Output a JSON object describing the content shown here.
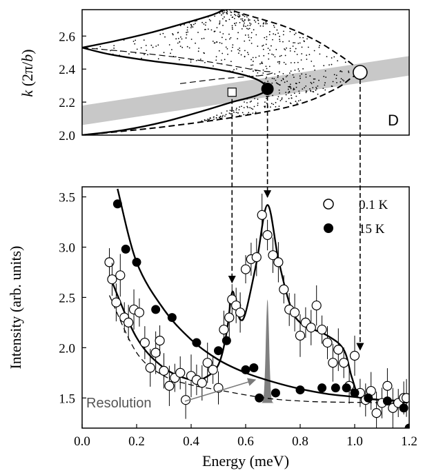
{
  "chart_data": [
    {
      "type": "scatter",
      "panel": "D",
      "ylabel": "k (2π/b)",
      "ylim": [
        2.0,
        2.76
      ],
      "yticks": [
        2.0,
        2.2,
        2.4,
        2.6
      ],
      "xlim": [
        0.0,
        1.2
      ],
      "dispersion_solid_lower": [
        [
          0.0,
          2.0
        ],
        [
          0.15,
          2.03
        ],
        [
          0.3,
          2.08
        ],
        [
          0.45,
          2.15
        ],
        [
          0.55,
          2.2
        ],
        [
          0.64,
          2.24
        ],
        [
          0.68,
          2.28
        ],
        [
          0.65,
          2.33
        ],
        [
          0.58,
          2.37
        ],
        [
          0.45,
          2.41
        ],
        [
          0.25,
          2.45
        ],
        [
          0.1,
          2.49
        ],
        [
          0.0,
          2.53
        ]
      ],
      "dispersion_solid_upper": [
        [
          0.0,
          2.53
        ],
        [
          0.12,
          2.57
        ],
        [
          0.25,
          2.62
        ],
        [
          0.38,
          2.68
        ],
        [
          0.48,
          2.73
        ],
        [
          0.52,
          2.76
        ]
      ],
      "dispersion_dashed_outer": [
        [
          0.0,
          2.0
        ],
        [
          0.3,
          2.05
        ],
        [
          0.6,
          2.12
        ],
        [
          0.8,
          2.19
        ],
        [
          0.93,
          2.28
        ],
        [
          0.99,
          2.35
        ],
        [
          1.02,
          2.38
        ],
        [
          0.99,
          2.43
        ],
        [
          0.93,
          2.5
        ],
        [
          0.85,
          2.58
        ],
        [
          0.74,
          2.66
        ],
        [
          0.6,
          2.73
        ],
        [
          0.54,
          2.76
        ]
      ],
      "dispersion_dashed_inner": [
        [
          0.0,
          2.53
        ],
        [
          0.2,
          2.5
        ],
        [
          0.4,
          2.46
        ],
        [
          0.55,
          2.42
        ],
        [
          0.65,
          2.39
        ],
        [
          0.7,
          2.38
        ],
        [
          0.65,
          2.36
        ],
        [
          0.5,
          2.34
        ],
        [
          0.35,
          2.31
        ]
      ],
      "band_k_range": [
        [
          0.0,
          2.12
        ],
        [
          1.2,
          2.42
        ]
      ],
      "markers": [
        {
          "symbol": "square",
          "energy": 0.55,
          "k": 2.26
        },
        {
          "symbol": "filled-circle",
          "energy": 0.68,
          "k": 2.28
        },
        {
          "symbol": "open-circle",
          "energy": 1.02,
          "k": 2.38
        }
      ],
      "panel_label": "D"
    },
    {
      "type": "scatter",
      "xlabel": "Energy (meV)",
      "ylabel": "Intensity (arb. units)",
      "xlim": [
        0.0,
        1.2
      ],
      "ylim": [
        1.2,
        3.6
      ],
      "xticks": [
        0.0,
        0.2,
        0.4,
        0.6,
        0.8,
        1.0,
        1.2
      ],
      "xtick_labels": [
        "0.0",
        "0.2",
        "0.4",
        "0.6",
        "0.8",
        "1.0",
        "1.2"
      ],
      "yticks": [
        1.5,
        2.0,
        2.5,
        3.0,
        3.5
      ],
      "ytick_labels": [
        "1.5",
        "2.0",
        "2.5",
        "3.0",
        "3.5"
      ],
      "legend": {
        "position": "top-right",
        "entries": [
          "0.1 K",
          "15 K"
        ]
      },
      "series": [
        {
          "name": "0.1 K",
          "marker": "open-circle",
          "points": [
            [
              0.1,
              2.85
            ],
            [
              0.11,
              2.68
            ],
            [
              0.125,
              2.45
            ],
            [
              0.14,
              2.72
            ],
            [
              0.155,
              2.3
            ],
            [
              0.17,
              2.25
            ],
            [
              0.19,
              2.38
            ],
            [
              0.21,
              2.35
            ],
            [
              0.23,
              2.05
            ],
            [
              0.25,
              1.8
            ],
            [
              0.27,
              1.95
            ],
            [
              0.285,
              2.07
            ],
            [
              0.3,
              1.77
            ],
            [
              0.32,
              1.62
            ],
            [
              0.34,
              1.7
            ],
            [
              0.36,
              1.75
            ],
            [
              0.38,
              1.48
            ],
            [
              0.4,
              1.72
            ],
            [
              0.42,
              1.68
            ],
            [
              0.44,
              1.65
            ],
            [
              0.46,
              1.85
            ],
            [
              0.48,
              1.78
            ],
            [
              0.5,
              1.6
            ],
            [
              0.52,
              2.18
            ],
            [
              0.54,
              2.3
            ],
            [
              0.55,
              2.48
            ],
            [
              0.565,
              2.42
            ],
            [
              0.58,
              2.35
            ],
            [
              0.6,
              2.78
            ],
            [
              0.62,
              2.88
            ],
            [
              0.64,
              2.9
            ],
            [
              0.66,
              3.32
            ],
            [
              0.68,
              3.12
            ],
            [
              0.7,
              2.92
            ],
            [
              0.72,
              2.85
            ],
            [
              0.74,
              2.58
            ],
            [
              0.76,
              2.38
            ],
            [
              0.78,
              2.35
            ],
            [
              0.8,
              2.12
            ],
            [
              0.82,
              2.25
            ],
            [
              0.84,
              2.2
            ],
            [
              0.86,
              2.42
            ],
            [
              0.88,
              2.18
            ],
            [
              0.9,
              2.05
            ],
            [
              0.92,
              1.85
            ],
            [
              0.94,
              1.98
            ],
            [
              0.96,
              1.85
            ],
            [
              0.98,
              1.62
            ],
            [
              1.0,
              1.92
            ],
            [
              1.02,
              1.55
            ],
            [
              1.04,
              1.48
            ],
            [
              1.06,
              1.57
            ],
            [
              1.08,
              1.35
            ],
            [
              1.1,
              1.45
            ],
            [
              1.12,
              1.62
            ],
            [
              1.14,
              1.4
            ],
            [
              1.16,
              1.45
            ],
            [
              1.18,
              1.5
            ],
            [
              1.19,
              1.5
            ]
          ],
          "error_bars": true
        },
        {
          "name": "15 K",
          "marker": "filled-circle",
          "points": [
            [
              0.13,
              3.43
            ],
            [
              0.16,
              2.98
            ],
            [
              0.2,
              2.85
            ],
            [
              0.27,
              2.38
            ],
            [
              0.33,
              2.3
            ],
            [
              0.42,
              2.05
            ],
            [
              0.5,
              1.97
            ],
            [
              0.53,
              2.07
            ],
            [
              0.6,
              1.78
            ],
            [
              0.63,
              1.8
            ],
            [
              0.65,
              1.5
            ],
            [
              0.71,
              1.55
            ],
            [
              0.8,
              1.58
            ],
            [
              0.88,
              1.6
            ],
            [
              0.93,
              1.6
            ],
            [
              0.97,
              1.6
            ],
            [
              1.0,
              1.55
            ],
            [
              1.05,
              1.5
            ],
            [
              1.12,
              1.47
            ],
            [
              1.18,
              1.4
            ],
            [
              1.2,
              1.2
            ]
          ]
        }
      ],
      "fit_0p1K": [
        [
          0.1,
          2.72
        ],
        [
          0.2,
          2.1
        ],
        [
          0.3,
          1.8
        ],
        [
          0.4,
          1.68
        ],
        [
          0.45,
          1.7
        ],
        [
          0.5,
          1.83
        ],
        [
          0.53,
          2.15
        ],
        [
          0.55,
          2.55
        ],
        [
          0.565,
          2.42
        ],
        [
          0.58,
          2.28
        ],
        [
          0.6,
          2.35
        ],
        [
          0.64,
          2.85
        ],
        [
          0.68,
          3.42
        ],
        [
          0.72,
          2.88
        ],
        [
          0.76,
          2.45
        ],
        [
          0.8,
          2.25
        ],
        [
          0.9,
          2.12
        ],
        [
          0.96,
          1.98
        ],
        [
          0.99,
          1.7
        ],
        [
          1.02,
          1.52
        ],
        [
          1.1,
          1.48
        ],
        [
          1.2,
          1.47
        ]
      ],
      "fit_15K": [
        [
          0.13,
          3.58
        ],
        [
          0.2,
          2.85
        ],
        [
          0.3,
          2.38
        ],
        [
          0.4,
          2.08
        ],
        [
          0.5,
          1.88
        ],
        [
          0.6,
          1.75
        ],
        [
          0.7,
          1.66
        ],
        [
          0.8,
          1.59
        ],
        [
          0.9,
          1.54
        ],
        [
          1.0,
          1.51
        ],
        [
          1.1,
          1.48
        ],
        [
          1.2,
          1.47
        ]
      ],
      "background_dashed": [
        [
          0.1,
          2.52
        ],
        [
          0.2,
          1.95
        ],
        [
          0.3,
          1.72
        ],
        [
          0.4,
          1.63
        ],
        [
          0.5,
          1.58
        ],
        [
          0.6,
          1.53
        ],
        [
          0.7,
          1.49
        ],
        [
          0.8,
          1.47
        ],
        [
          0.9,
          1.46
        ],
        [
          1.2,
          1.45
        ]
      ],
      "resolution_peak": {
        "center": 0.68,
        "base": 1.45,
        "height": 2.48,
        "width": 0.012
      },
      "annotations": [
        "Resolution"
      ],
      "guide_arrows_energy": [
        0.55,
        0.68,
        1.02
      ]
    }
  ],
  "colors": {
    "axis": "#000000",
    "band": "#c8c8c8",
    "resolution": "#808080",
    "dots": "#000000"
  }
}
